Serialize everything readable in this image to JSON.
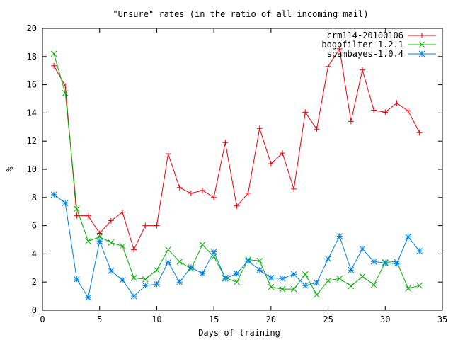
{
  "chart_data": {
    "type": "line",
    "title": "\"Unsure\" rates (in the ratio of all incoming mail)",
    "xlabel": "Days of training",
    "ylabel": "%",
    "xlim": [
      0,
      35
    ],
    "ylim": [
      0,
      20
    ],
    "xticks": [
      0,
      5,
      10,
      15,
      20,
      25,
      30,
      35
    ],
    "yticks": [
      0,
      2,
      4,
      6,
      8,
      10,
      12,
      14,
      16,
      18,
      20
    ],
    "grid": false,
    "legend_position": "top-right",
    "x": [
      1,
      2,
      3,
      4,
      5,
      6,
      7,
      8,
      9,
      10,
      11,
      12,
      13,
      14,
      15,
      16,
      17,
      18,
      19,
      20,
      21,
      22,
      23,
      24,
      25,
      26,
      27,
      28,
      29,
      30,
      31,
      32,
      33
    ],
    "series": [
      {
        "name": "crm114-20100106",
        "color": "#e8000b",
        "marker": "plus",
        "values": [
          17.35,
          15.9,
          6.7,
          6.7,
          5.45,
          6.35,
          6.95,
          4.3,
          6.0,
          6.0,
          11.1,
          8.7,
          8.3,
          8.5,
          8.0,
          11.9,
          7.4,
          8.3,
          12.9,
          10.4,
          11.15,
          8.6,
          14.05,
          12.85,
          17.3,
          18.55,
          13.4,
          17.05,
          14.2,
          14.05,
          14.7,
          14.15,
          12.6
        ]
      },
      {
        "name": "bogofilter-1.2.1",
        "color": "#00b000",
        "marker": "cross",
        "values": [
          18.2,
          15.4,
          7.2,
          4.9,
          5.2,
          4.8,
          4.55,
          2.3,
          2.2,
          2.85,
          4.3,
          3.45,
          2.95,
          4.65,
          3.8,
          2.3,
          2.0,
          3.6,
          3.5,
          1.65,
          1.5,
          1.5,
          2.55,
          1.1,
          2.1,
          2.25,
          1.7,
          2.4,
          1.8,
          3.4,
          3.45,
          1.55,
          1.75
        ]
      },
      {
        "name": "spambayes-1.0.4",
        "color": "#0080e0",
        "marker": "star",
        "values": [
          8.2,
          7.6,
          2.2,
          0.9,
          4.9,
          2.8,
          2.15,
          1.0,
          1.75,
          1.85,
          3.4,
          2.0,
          3.05,
          2.6,
          4.15,
          2.25,
          2.6,
          3.5,
          2.85,
          2.3,
          2.25,
          2.55,
          1.75,
          1.95,
          3.65,
          5.25,
          2.85,
          4.35,
          3.45,
          3.35,
          3.3,
          5.2,
          4.2
        ]
      }
    ]
  }
}
